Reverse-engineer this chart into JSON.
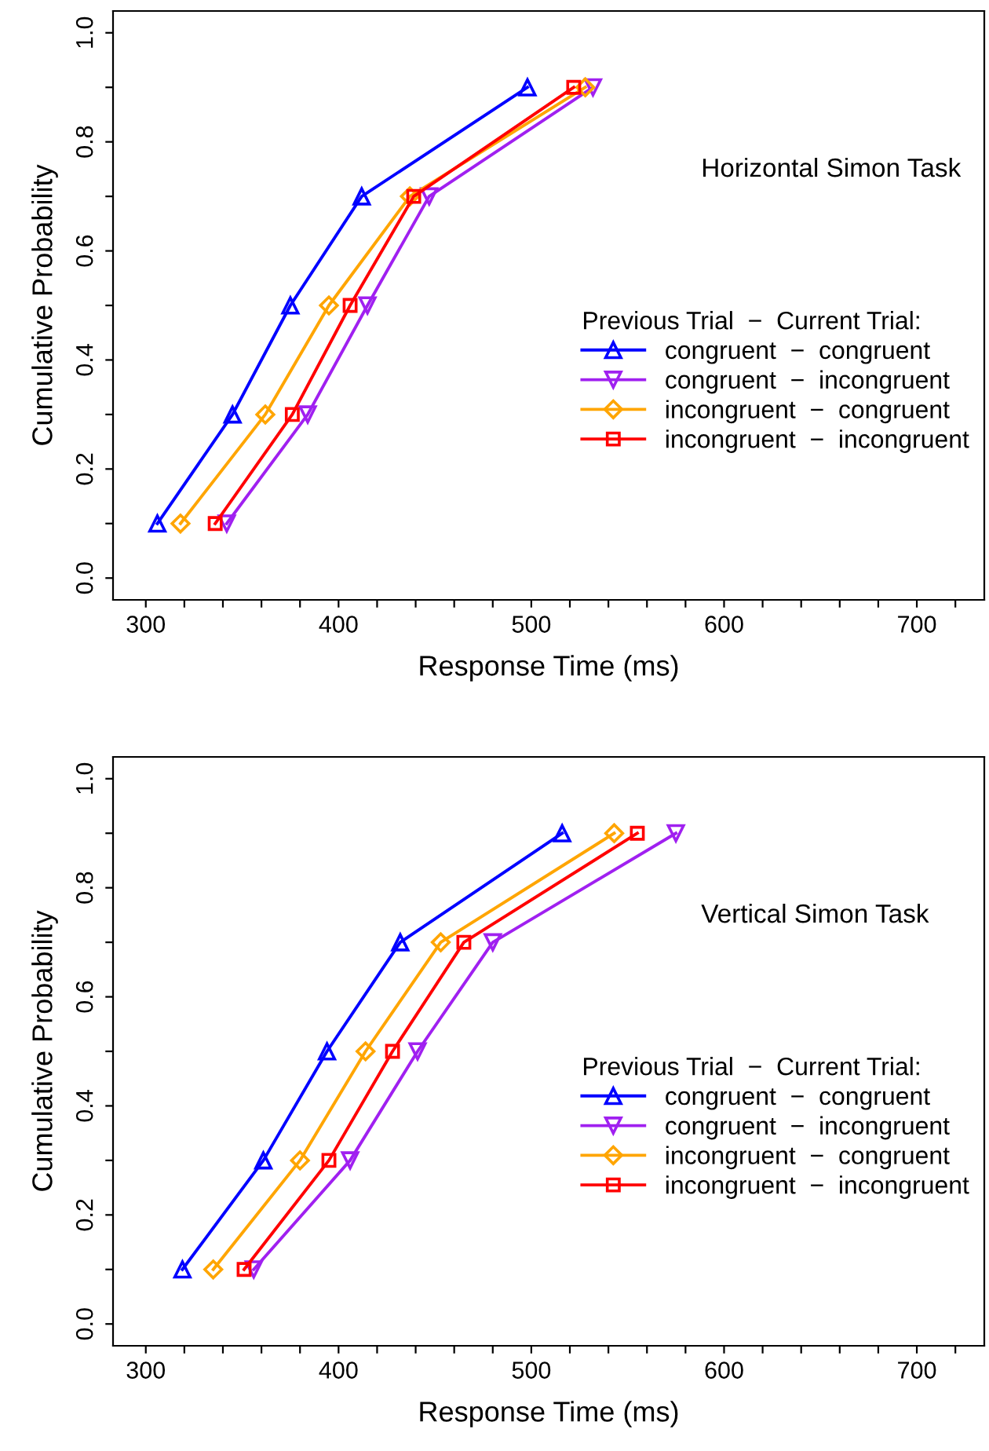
{
  "chart_data": [
    {
      "type": "line",
      "title": "Horizontal Simon Task",
      "xlabel": "Response Time (ms)",
      "ylabel": "Cumulative Probability",
      "legend_title": "Previous Trial  −  Current Trial:",
      "legend": "right",
      "grid": false,
      "line_style": "solid",
      "xlim": [
        283,
        735
      ],
      "ylim": [
        -0.04,
        1.04
      ],
      "xticks": [
        300,
        {
          "value": 320,
          "label": null
        },
        {
          "value": 340,
          "label": null
        },
        {
          "value": 360,
          "label": null
        },
        {
          "value": 380,
          "label": null
        },
        400,
        {
          "value": 420,
          "label": null
        },
        {
          "value": 440,
          "label": null
        },
        {
          "value": 460,
          "label": null
        },
        {
          "value": 480,
          "label": null
        },
        500,
        {
          "value": 520,
          "label": null
        },
        {
          "value": 540,
          "label": null
        },
        {
          "value": 560,
          "label": null
        },
        {
          "value": 580,
          "label": null
        },
        600,
        {
          "value": 620,
          "label": null
        },
        {
          "value": 640,
          "label": null
        },
        {
          "value": 660,
          "label": null
        },
        {
          "value": 680,
          "label": null
        },
        700,
        {
          "value": 720,
          "label": null
        }
      ],
      "yticks": [
        "0.0",
        {
          "value": 0.1,
          "label": null
        },
        {
          "value": 0.2,
          "label": "0.2"
        },
        {
          "value": 0.3,
          "label": null
        },
        {
          "value": 0.4,
          "label": "0.4"
        },
        {
          "value": 0.5,
          "label": null
        },
        {
          "value": 0.6,
          "label": "0.6"
        },
        {
          "value": 0.7,
          "label": null
        },
        {
          "value": 0.8,
          "label": "0.8"
        },
        {
          "value": 0.9,
          "label": null
        },
        {
          "value": 1.0,
          "label": "1.0"
        }
      ],
      "series": [
        {
          "name": "congruent  −  congruent",
          "color": "#0000ff",
          "marker": "triangle",
          "x": [
            306,
            345,
            375,
            412,
            498
          ],
          "values": [
            0.1,
            0.3,
            0.5,
            0.7,
            0.9
          ]
        },
        {
          "name": "congruent  −  incongruent",
          "color": "#a020f0",
          "marker": "triangle_down",
          "x": [
            342,
            384,
            415,
            447,
            532
          ],
          "values": [
            0.1,
            0.3,
            0.5,
            0.7,
            0.9
          ]
        },
        {
          "name": "incongruent  −  congruent",
          "color": "#ffa500",
          "marker": "diamond",
          "x": [
            318,
            362,
            395,
            437,
            528
          ],
          "values": [
            0.1,
            0.3,
            0.5,
            0.7,
            0.9
          ]
        },
        {
          "name": "incongruent  −  incongruent",
          "color": "#ff0000",
          "marker": "square",
          "x": [
            336,
            376,
            406,
            439,
            522
          ],
          "values": [
            0.1,
            0.3,
            0.5,
            0.7,
            0.9
          ]
        }
      ]
    },
    {
      "type": "line",
      "title": "Vertical Simon Task",
      "xlabel": "Response Time (ms)",
      "ylabel": "Cumulative Probability",
      "legend_title": "Previous Trial  −  Current Trial:",
      "legend": "right",
      "grid": false,
      "line_style": "solid",
      "xlim": [
        283,
        735
      ],
      "ylim": [
        -0.04,
        1.04
      ],
      "xticks": [
        300,
        {
          "value": 320,
          "label": null
        },
        {
          "value": 340,
          "label": null
        },
        {
          "value": 360,
          "label": null
        },
        {
          "value": 380,
          "label": null
        },
        400,
        {
          "value": 420,
          "label": null
        },
        {
          "value": 440,
          "label": null
        },
        {
          "value": 460,
          "label": null
        },
        {
          "value": 480,
          "label": null
        },
        500,
        {
          "value": 520,
          "label": null
        },
        {
          "value": 540,
          "label": null
        },
        {
          "value": 560,
          "label": null
        },
        {
          "value": 580,
          "label": null
        },
        600,
        {
          "value": 620,
          "label": null
        },
        {
          "value": 640,
          "label": null
        },
        {
          "value": 660,
          "label": null
        },
        {
          "value": 680,
          "label": null
        },
        700,
        {
          "value": 720,
          "label": null
        }
      ],
      "yticks": [
        {
          "value": 0.0,
          "label": "0.0"
        },
        {
          "value": 0.1,
          "label": null
        },
        {
          "value": 0.2,
          "label": "0.2"
        },
        {
          "value": 0.3,
          "label": null
        },
        {
          "value": 0.4,
          "label": "0.4"
        },
        {
          "value": 0.5,
          "label": null
        },
        {
          "value": 0.6,
          "label": "0.6"
        },
        {
          "value": 0.7,
          "label": null
        },
        {
          "value": 0.8,
          "label": "0.8"
        },
        {
          "value": 0.9,
          "label": null
        },
        {
          "value": 1.0,
          "label": "1.0"
        }
      ],
      "series": [
        {
          "name": "congruent  −  congruent",
          "color": "#0000ff",
          "marker": "triangle",
          "x": [
            319,
            361,
            394,
            432,
            516
          ],
          "values": [
            0.1,
            0.3,
            0.5,
            0.7,
            0.9
          ]
        },
        {
          "name": "congruent  −  incongruent",
          "color": "#a020f0",
          "marker": "triangle_down",
          "x": [
            356,
            406,
            441,
            480,
            575
          ],
          "values": [
            0.1,
            0.3,
            0.5,
            0.7,
            0.9
          ]
        },
        {
          "name": "incongruent  −  congruent",
          "color": "#ffa500",
          "marker": "diamond",
          "x": [
            335,
            380,
            414,
            453,
            543
          ],
          "values": [
            0.1,
            0.3,
            0.5,
            0.7,
            0.9
          ]
        },
        {
          "name": "incongruent  −  incongruent",
          "color": "#ff0000",
          "marker": "square",
          "x": [
            351,
            395,
            428,
            465,
            555
          ],
          "values": [
            0.1,
            0.3,
            0.5,
            0.7,
            0.9
          ]
        }
      ]
    }
  ]
}
